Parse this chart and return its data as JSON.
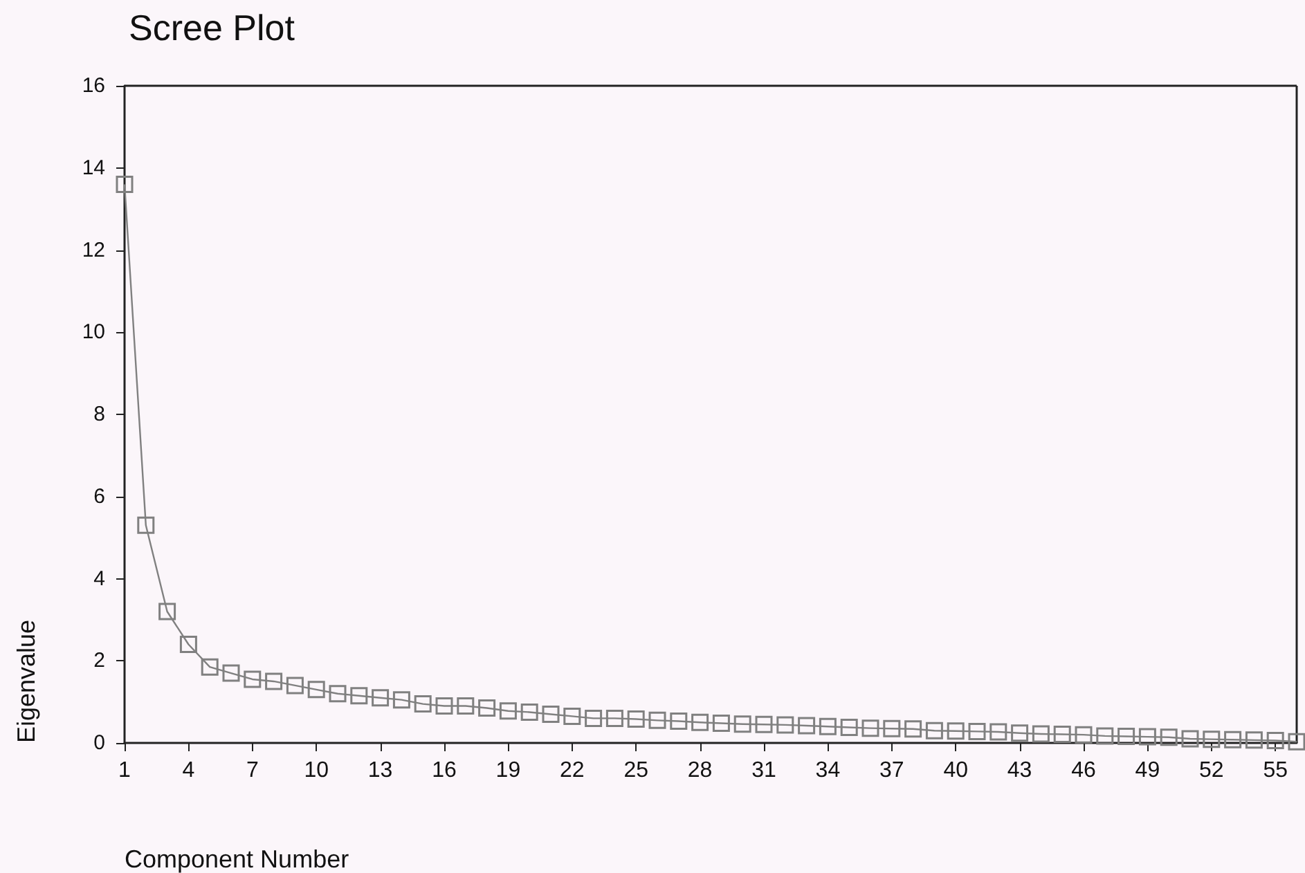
{
  "chart_data": {
    "type": "line",
    "title": "Scree Plot",
    "xlabel": "Component Number",
    "ylabel": "Eigenvalue",
    "categories": [
      "1",
      null,
      null,
      "4",
      null,
      null,
      "7",
      null,
      null,
      "10",
      null,
      null,
      "13",
      null,
      null,
      "16",
      null,
      null,
      "19",
      null,
      null,
      "22",
      null,
      null,
      "25",
      null,
      null,
      "28",
      null,
      null,
      "31",
      null,
      null,
      "34",
      null,
      null,
      "37",
      null,
      null,
      "40",
      null,
      null,
      "43",
      null,
      null,
      "46",
      null,
      null,
      "49",
      null,
      null,
      "52",
      null,
      null,
      "55",
      null
    ],
    "series": [
      {
        "color": "#808080",
        "values": [
          13.6,
          5.3,
          3.2,
          2.4,
          1.85,
          1.7,
          1.55,
          1.5,
          1.4,
          1.3,
          1.2,
          1.15,
          1.1,
          1.05,
          0.95,
          0.9,
          0.9,
          0.85,
          0.78,
          0.75,
          0.7,
          0.65,
          0.6,
          0.6,
          0.58,
          0.55,
          0.53,
          0.5,
          0.48,
          0.46,
          0.45,
          0.44,
          0.42,
          0.4,
          0.38,
          0.36,
          0.35,
          0.34,
          0.3,
          0.29,
          0.28,
          0.27,
          0.24,
          0.22,
          0.21,
          0.2,
          0.17,
          0.16,
          0.15,
          0.14,
          0.1,
          0.09,
          0.08,
          0.07,
          0.06,
          0.03
        ]
      }
    ],
    "ylim": [
      0,
      16
    ],
    "yticks": [
      0,
      2,
      4,
      6,
      8,
      10,
      12,
      14,
      16
    ],
    "marker": "square",
    "line_style": "solid"
  }
}
